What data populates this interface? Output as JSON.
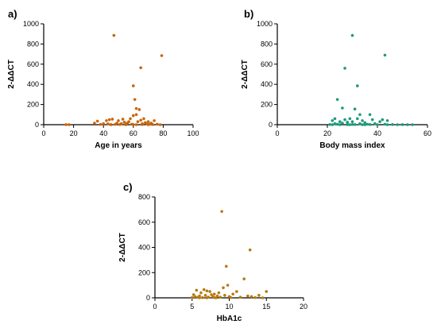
{
  "chart_data": [
    {
      "type": "scatter",
      "panel_label": "a)",
      "xlabel": "Age in years",
      "ylabel": "2-ΔΔCT",
      "xlim": [
        0,
        100
      ],
      "ylim": [
        0,
        1000
      ],
      "xticks": [
        "0",
        "20",
        "40",
        "60",
        "80",
        "100"
      ],
      "yticks": [
        "0",
        "200",
        "400",
        "600",
        "800",
        "1000"
      ],
      "color": "#c8650a",
      "points": [
        [
          15,
          1
        ],
        [
          17,
          0
        ],
        [
          34,
          15
        ],
        [
          36,
          35
        ],
        [
          38,
          3
        ],
        [
          40,
          10
        ],
        [
          42,
          40
        ],
        [
          43,
          8
        ],
        [
          44,
          50
        ],
        [
          45,
          2
        ],
        [
          46,
          55
        ],
        [
          47,
          885
        ],
        [
          48,
          4
        ],
        [
          49,
          15
        ],
        [
          50,
          40
        ],
        [
          51,
          2
        ],
        [
          52,
          10
        ],
        [
          53,
          55
        ],
        [
          54,
          25
        ],
        [
          55,
          5
        ],
        [
          56,
          15
        ],
        [
          57,
          30
        ],
        [
          58,
          60
        ],
        [
          59,
          5
        ],
        [
          60,
          90
        ],
        [
          60,
          385
        ],
        [
          61,
          250
        ],
        [
          62,
          160
        ],
        [
          62,
          100
        ],
        [
          63,
          30
        ],
        [
          64,
          150
        ],
        [
          65,
          565
        ],
        [
          65,
          45
        ],
        [
          66,
          10
        ],
        [
          66,
          2
        ],
        [
          67,
          60
        ],
        [
          68,
          20
        ],
        [
          69,
          8
        ],
        [
          70,
          30
        ],
        [
          70,
          0
        ],
        [
          71,
          5
        ],
        [
          72,
          15
        ],
        [
          73,
          2
        ],
        [
          74,
          40
        ],
        [
          76,
          5
        ],
        [
          78,
          0
        ],
        [
          79,
          685
        ],
        [
          60,
          2
        ],
        [
          55,
          0
        ],
        [
          45,
          0
        ],
        [
          62,
          0
        ]
      ]
    },
    {
      "type": "scatter",
      "panel_label": "b)",
      "xlabel": "Body mass index",
      "ylabel": "2-ΔΔCT",
      "xlim": [
        0,
        60
      ],
      "ylim": [
        0,
        1000
      ],
      "xticks": [
        "0",
        "20",
        "40",
        "60"
      ],
      "yticks": [
        "0",
        "200",
        "400",
        "600",
        "800",
        "1000"
      ],
      "color": "#1f9a7a",
      "points": [
        [
          21,
          2
        ],
        [
          22,
          40
        ],
        [
          22,
          0
        ],
        [
          23,
          60
        ],
        [
          23,
          10
        ],
        [
          24,
          250
        ],
        [
          24,
          5
        ],
        [
          25,
          30
        ],
        [
          25,
          0
        ],
        [
          26,
          165
        ],
        [
          26,
          15
        ],
        [
          27,
          560
        ],
        [
          27,
          50
        ],
        [
          28,
          5
        ],
        [
          28,
          25
        ],
        [
          29,
          60
        ],
        [
          29,
          0
        ],
        [
          30,
          885
        ],
        [
          30,
          30
        ],
        [
          31,
          155
        ],
        [
          31,
          2
        ],
        [
          32,
          385
        ],
        [
          32,
          60
        ],
        [
          33,
          10
        ],
        [
          33,
          100
        ],
        [
          34,
          40
        ],
        [
          34,
          0
        ],
        [
          35,
          20
        ],
        [
          36,
          5
        ],
        [
          37,
          100
        ],
        [
          37,
          2
        ],
        [
          38,
          50
        ],
        [
          39,
          10
        ],
        [
          40,
          0
        ],
        [
          41,
          30
        ],
        [
          42,
          50
        ],
        [
          43,
          690
        ],
        [
          43,
          5
        ],
        [
          44,
          40
        ],
        [
          44,
          0
        ],
        [
          46,
          2
        ],
        [
          48,
          0
        ],
        [
          50,
          1
        ],
        [
          52,
          0
        ],
        [
          54,
          0
        ],
        [
          30,
          2
        ],
        [
          28,
          0
        ],
        [
          35,
          0
        ]
      ]
    },
    {
      "type": "scatter",
      "panel_label": "c)",
      "xlabel": "HbA1c",
      "ylabel": "2-ΔΔCT",
      "xlim": [
        0,
        20
      ],
      "ylim": [
        0,
        800
      ],
      "xticks": [
        "0",
        "5",
        "10",
        "15",
        "20"
      ],
      "yticks": [
        "0",
        "200",
        "400",
        "600",
        "800"
      ],
      "color": "#b87a12",
      "points": [
        [
          5.0,
          2
        ],
        [
          5.2,
          25
        ],
        [
          5.4,
          10
        ],
        [
          5.6,
          60
        ],
        [
          5.8,
          5
        ],
        [
          6.0,
          15
        ],
        [
          6.2,
          40
        ],
        [
          6.4,
          2
        ],
        [
          6.6,
          65
        ],
        [
          6.8,
          20
        ],
        [
          7.0,
          55
        ],
        [
          7.2,
          5
        ],
        [
          7.4,
          50
        ],
        [
          7.6,
          25
        ],
        [
          7.8,
          10
        ],
        [
          8.0,
          30
        ],
        [
          8.2,
          0
        ],
        [
          8.4,
          15
        ],
        [
          8.6,
          40
        ],
        [
          8.8,
          5
        ],
        [
          9.0,
          685
        ],
        [
          9.2,
          80
        ],
        [
          9.4,
          20
        ],
        [
          9.6,
          250
        ],
        [
          9.8,
          100
        ],
        [
          10.0,
          10
        ],
        [
          10.2,
          2
        ],
        [
          10.5,
          30
        ],
        [
          11.0,
          50
        ],
        [
          11.5,
          5
        ],
        [
          12.0,
          150
        ],
        [
          12.5,
          15
        ],
        [
          12.8,
          380
        ],
        [
          13.0,
          10
        ],
        [
          13.5,
          2
        ],
        [
          14.0,
          20
        ],
        [
          14.5,
          0
        ],
        [
          15.0,
          50
        ],
        [
          8.0,
          2
        ],
        [
          7.0,
          0
        ],
        [
          6.0,
          0
        ]
      ]
    }
  ]
}
